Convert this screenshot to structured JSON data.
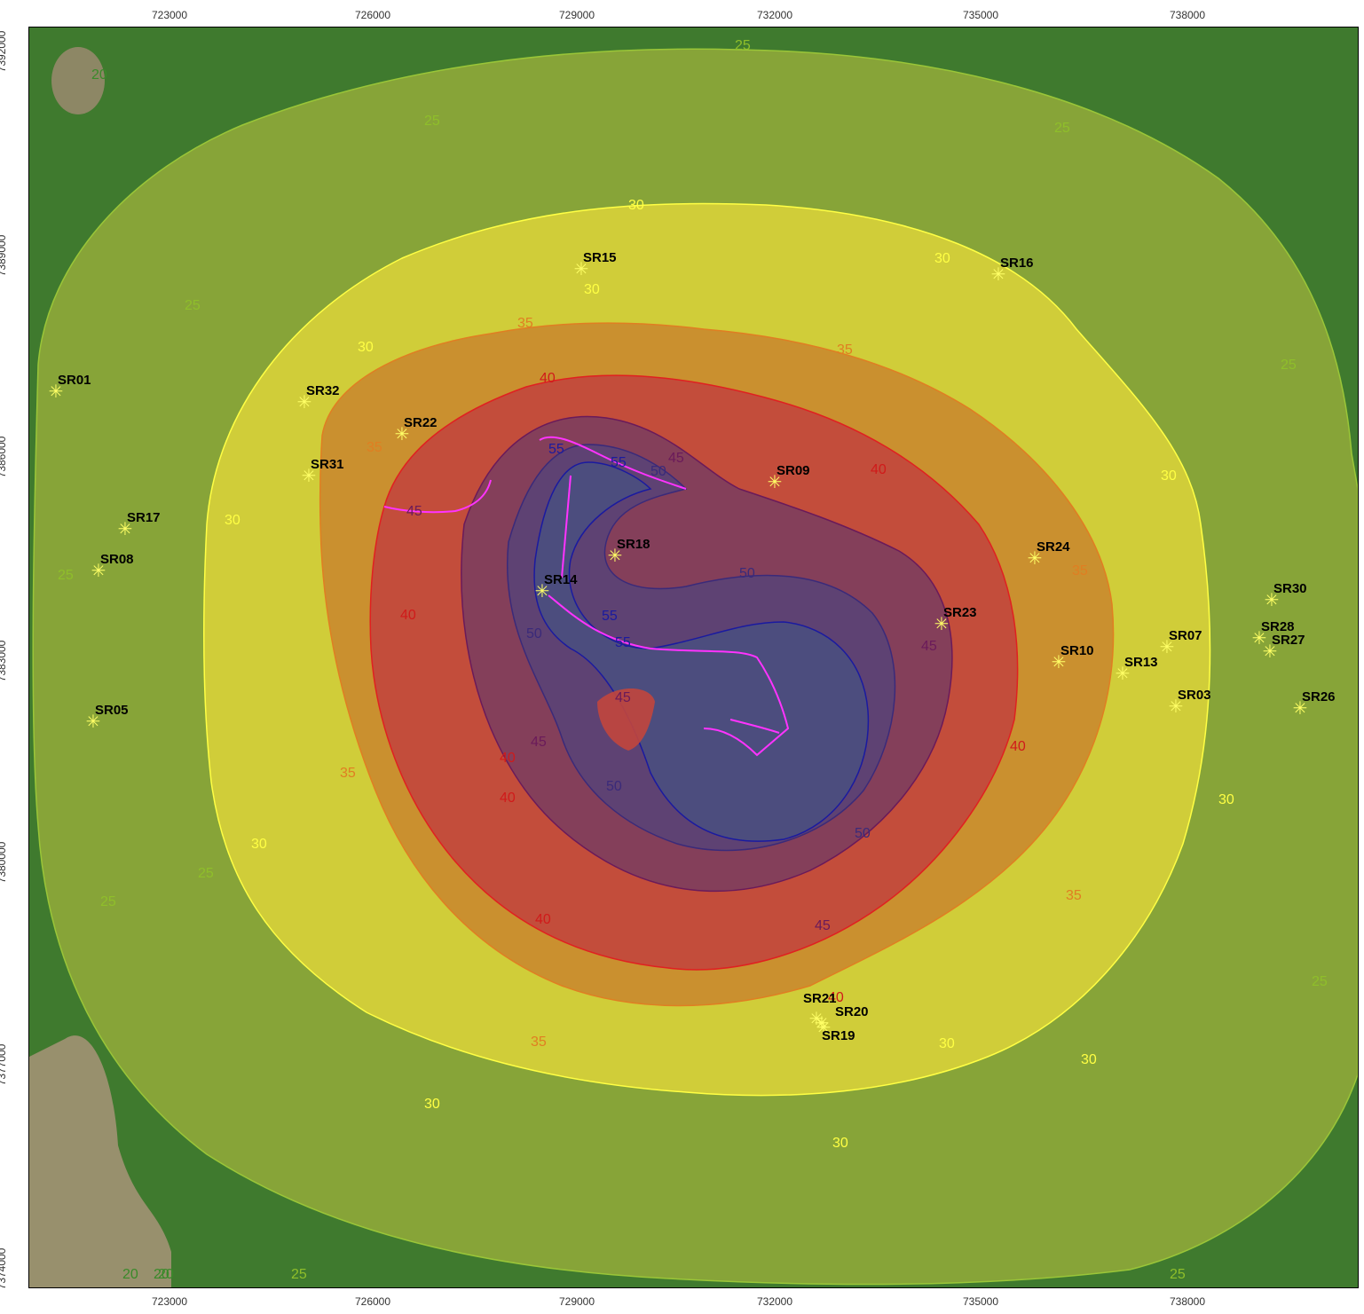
{
  "x_axis": {
    "ticks": [
      "723000",
      "726000",
      "729000",
      "732000",
      "735000",
      "738000"
    ],
    "tick_values": [
      723000,
      726000,
      729000,
      732000,
      735000,
      738000
    ]
  },
  "y_axis": {
    "ticks": [
      "7392000",
      "7389000",
      "7386000",
      "7383000",
      "7380000",
      "7377000",
      "7374000"
    ],
    "tick_values": [
      7392000,
      7389000,
      7386000,
      7383000,
      7380000,
      7377000,
      7374000
    ]
  },
  "colors": {
    "zone_20": "#3f7a2e",
    "zone_25": "#8fa83a",
    "zone_30": "#d8d13a",
    "zone_35": "#c98a2f",
    "zone_40": "#c2463d",
    "zone_45": "#7d3e5e",
    "zone_50": "#5a4275",
    "zone_55": "#4a4f7f",
    "contour_25": "#9ac638",
    "contour_30": "#ffff44",
    "contour_35": "#e07e22",
    "contour_40": "#e02020",
    "contour_45": "#6a1a5a",
    "contour_50": "#3a2a7a",
    "contour_55": "#1a1aa0",
    "source_line": "#ff33ff",
    "receptor_marker": "#ffff66"
  },
  "contour_labels": [
    {
      "text": "20"
    },
    {
      "text": "20"
    },
    {
      "text": "20"
    },
    {
      "text": "20"
    },
    {
      "text": "25"
    },
    {
      "text": "25"
    },
    {
      "text": "25"
    },
    {
      "text": "25"
    },
    {
      "text": "25"
    },
    {
      "text": "25"
    },
    {
      "text": "25"
    },
    {
      "text": "25"
    },
    {
      "text": "25"
    },
    {
      "text": "25"
    },
    {
      "text": "25"
    },
    {
      "text": "30"
    },
    {
      "text": "30"
    },
    {
      "text": "30"
    },
    {
      "text": "30"
    },
    {
      "text": "30"
    },
    {
      "text": "30"
    },
    {
      "text": "30"
    },
    {
      "text": "30"
    },
    {
      "text": "30"
    },
    {
      "text": "30"
    },
    {
      "text": "30"
    },
    {
      "text": "30"
    },
    {
      "text": "35"
    },
    {
      "text": "35"
    },
    {
      "text": "35"
    },
    {
      "text": "35"
    },
    {
      "text": "35"
    },
    {
      "text": "35"
    },
    {
      "text": "35"
    },
    {
      "text": "40"
    },
    {
      "text": "40"
    },
    {
      "text": "40"
    },
    {
      "text": "40"
    },
    {
      "text": "40"
    },
    {
      "text": "40"
    },
    {
      "text": "40"
    },
    {
      "text": "40"
    },
    {
      "text": "45"
    },
    {
      "text": "45"
    },
    {
      "text": "45"
    },
    {
      "text": "45"
    },
    {
      "text": "45"
    },
    {
      "text": "45"
    },
    {
      "text": "50"
    },
    {
      "text": "50"
    },
    {
      "text": "50"
    },
    {
      "text": "50"
    },
    {
      "text": "50"
    },
    {
      "text": "55"
    },
    {
      "text": "55"
    },
    {
      "text": "55"
    },
    {
      "text": "55"
    }
  ],
  "receptors": [
    {
      "label": "SR01"
    },
    {
      "label": "SR32"
    },
    {
      "label": "SR22"
    },
    {
      "label": "SR31"
    },
    {
      "label": "SR17"
    },
    {
      "label": "SR08"
    },
    {
      "label": "SR05"
    },
    {
      "label": "SR15"
    },
    {
      "label": "SR16"
    },
    {
      "label": "SR09"
    },
    {
      "label": "SR18"
    },
    {
      "label": "SR24"
    },
    {
      "label": "SR23"
    },
    {
      "label": "SR10"
    },
    {
      "label": "SR13"
    },
    {
      "label": "SR07"
    },
    {
      "label": "SR03"
    },
    {
      "label": "SR30"
    },
    {
      "label": "SR28"
    },
    {
      "label": "SR27"
    },
    {
      "label": "SR26"
    },
    {
      "label": "SR21"
    },
    {
      "label": "SR20"
    },
    {
      "label": "SR19"
    },
    {
      "label": "SR14"
    }
  ]
}
